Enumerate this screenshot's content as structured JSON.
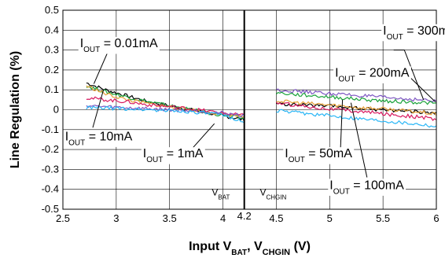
{
  "chart_data": {
    "type": "line",
    "ylabel": "Line Regulation (%)",
    "xlabel": {
      "main": "Input V",
      "sub1": "BAT",
      "sep": ", V",
      "sub2": "CHGIN",
      "tail": " (V)"
    },
    "xlim": [
      2.5,
      6.0
    ],
    "ylim": [
      -0.5,
      0.5
    ],
    "x_ticks": [
      2.5,
      3,
      3.5,
      4,
      4.5,
      5,
      5.5,
      6
    ],
    "x_tick_labels": [
      "2.5",
      "3",
      "3.5",
      "4",
      "4.5",
      "5",
      "5.5",
      "6"
    ],
    "extra_x_tick": {
      "value": 4.2,
      "label": "4.2"
    },
    "y_ticks": [
      -0.5,
      -0.4,
      -0.3,
      -0.2,
      -0.1,
      0,
      0.1,
      0.2,
      0.3,
      0.4,
      0.5
    ],
    "y_tick_labels": [
      "-0.5",
      "-0.4",
      "-0.3",
      "-0.2",
      "-0.1",
      "0",
      "0.1",
      "0.2",
      "0.3",
      "0.4",
      "0.5"
    ],
    "grid": true,
    "divider_x": 4.2,
    "regions": [
      {
        "label_main": "V",
        "label_sub": "BAT",
        "x": 3.98,
        "y": -0.43,
        "anchor": "middle"
      },
      {
        "label_main": "V",
        "label_sub": "CHGIN",
        "x": 4.47,
        "y": -0.43,
        "anchor": "middle"
      }
    ],
    "series": [
      {
        "color": "#000000",
        "x": [
          2.72,
          2.9,
          3.1,
          3.3,
          3.5,
          3.7,
          3.9,
          4.05,
          4.2
        ],
        "y": [
          0.135,
          0.1,
          0.07,
          0.04,
          0.02,
          0.0,
          -0.02,
          -0.035,
          -0.05
        ]
      },
      {
        "color": "#1aa33a",
        "x": [
          2.72,
          2.9,
          3.1,
          3.3,
          3.5,
          3.7,
          3.9,
          4.05,
          4.2
        ],
        "y": [
          0.12,
          0.09,
          0.065,
          0.04,
          0.02,
          0.0,
          -0.02,
          -0.03,
          -0.045
        ]
      },
      {
        "color": "#e8a23a",
        "x": [
          2.72,
          2.9,
          3.1,
          3.3,
          3.5,
          3.7,
          3.9,
          4.05,
          4.2
        ],
        "y": [
          0.12,
          0.08,
          0.05,
          0.03,
          0.015,
          0.0,
          -0.015,
          -0.025,
          -0.035
        ]
      },
      {
        "color": "#d81b60",
        "x": [
          2.72,
          2.9,
          3.1,
          3.3,
          3.5,
          3.7,
          3.9,
          4.05,
          4.2
        ],
        "y": [
          0.06,
          0.05,
          0.04,
          0.025,
          0.015,
          0.005,
          -0.01,
          -0.02,
          -0.03
        ]
      },
      {
        "color": "#7e57c2",
        "x": [
          2.72,
          2.9,
          3.1,
          3.3,
          3.5,
          3.7,
          3.9,
          4.05,
          4.2
        ],
        "y": [
          0.02,
          0.015,
          0.01,
          0.005,
          0.0,
          -0.005,
          -0.012,
          -0.02,
          -0.03
        ]
      },
      {
        "color": "#29b6f6",
        "x": [
          2.72,
          2.9,
          3.1,
          3.3,
          3.5,
          3.7,
          3.9,
          4.05,
          4.2
        ],
        "y": [
          0.01,
          0.008,
          0.005,
          0.0,
          -0.005,
          -0.01,
          -0.02,
          -0.035,
          -0.06
        ]
      },
      {
        "color": "#7e57c2",
        "x": [
          4.5,
          4.7,
          4.9,
          5.1,
          5.3,
          5.5,
          5.7,
          5.9,
          6.0
        ],
        "y": [
          0.1,
          0.092,
          0.085,
          0.078,
          0.07,
          0.062,
          0.055,
          0.048,
          0.04
        ]
      },
      {
        "color": "#1aa33a",
        "x": [
          4.5,
          4.7,
          4.9,
          5.1,
          5.3,
          5.5,
          5.7,
          5.9,
          6.0
        ],
        "y": [
          0.085,
          0.075,
          0.068,
          0.06,
          0.052,
          0.045,
          0.04,
          0.035,
          0.03
        ]
      },
      {
        "color": "#000000",
        "x": [
          4.5,
          4.7,
          4.9,
          5.1,
          5.3,
          5.5,
          5.7,
          5.9,
          6.0
        ],
        "y": [
          0.03,
          0.025,
          0.02,
          0.015,
          0.005,
          0.0,
          -0.005,
          -0.012,
          -0.02
        ]
      },
      {
        "color": "#e8a23a",
        "x": [
          4.5,
          4.7,
          4.9,
          5.1,
          5.3,
          5.5,
          5.7,
          5.9,
          6.0
        ],
        "y": [
          0.045,
          0.035,
          0.028,
          0.02,
          0.01,
          0.005,
          -0.005,
          -0.015,
          -0.025
        ]
      },
      {
        "color": "#d81b60",
        "x": [
          4.5,
          4.7,
          4.9,
          5.1,
          5.3,
          5.5,
          5.7,
          5.9,
          6.0
        ],
        "y": [
          0.035,
          0.022,
          0.01,
          0.0,
          -0.01,
          -0.02,
          -0.03,
          -0.04,
          -0.05
        ]
      },
      {
        "color": "#29b6f6",
        "x": [
          4.5,
          4.7,
          4.9,
          5.1,
          5.3,
          5.5,
          5.7,
          5.9,
          6.0
        ],
        "y": [
          -0.005,
          -0.015,
          -0.025,
          -0.035,
          -0.045,
          -0.055,
          -0.065,
          -0.075,
          -0.085
        ]
      }
    ],
    "annotations": [
      {
        "main": "I",
        "sub": "OUT",
        "text": " = 0.01mA",
        "x": 2.66,
        "y": 0.338,
        "anchor": "start",
        "leader": [
          [
            3.35,
            0.338
          ],
          [
            2.96,
            0.338
          ],
          [
            2.79,
            0.13
          ]
        ]
      },
      {
        "main": "I",
        "sub": "OUT",
        "text": " = 10mA",
        "x": 2.52,
        "y": -0.13,
        "anchor": "start",
        "leader": [
          [
            2.78,
            -0.09
          ],
          [
            2.88,
            0.1
          ]
        ]
      },
      {
        "main": "I",
        "sub": "OUT",
        "text": " = 1mA",
        "x": 3.25,
        "y": -0.216,
        "anchor": "start",
        "leader": [
          [
            3.72,
            -0.19
          ],
          [
            3.92,
            -0.07
          ]
        ]
      },
      {
        "main": "I",
        "sub": "OUT",
        "text": " = 300mA",
        "x": 5.5,
        "y": 0.402,
        "anchor": "start",
        "leader": [
          [
            5.6,
            0.3
          ],
          [
            5.7,
            0.3
          ],
          [
            5.88,
            0.05
          ]
        ]
      },
      {
        "main": "I",
        "sub": "OUT",
        "text": " = 200mA",
        "x": 5.05,
        "y": 0.19,
        "anchor": "start",
        "leader": [
          [
            5.6,
            0.19
          ],
          [
            5.7,
            0.19
          ],
          [
            5.99,
            0.04
          ]
        ]
      },
      {
        "main": "I",
        "sub": "OUT",
        "text": " = 50mA",
        "x": 4.58,
        "y": -0.216,
        "anchor": "start",
        "leader": [
          [
            5.05,
            -0.216
          ],
          [
            5.1,
            -0.216
          ],
          [
            5.12,
            0.05
          ]
        ]
      },
      {
        "main": "I",
        "sub": "OUT",
        "text": " = 100mA",
        "x": 5.0,
        "y": -0.375,
        "anchor": "start",
        "leader": [
          [
            5.35,
            -0.34
          ],
          [
            5.2,
            0.035
          ]
        ]
      }
    ]
  }
}
